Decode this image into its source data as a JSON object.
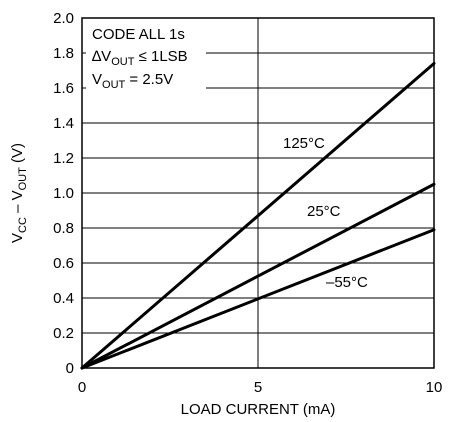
{
  "chart_data": {
    "type": "line",
    "title": "",
    "xlabel": "LOAD CURRENT (mA)",
    "ylabel": {
      "prefix": "V",
      "sub1": "CC",
      "mid": " – V",
      "sub2": "OUT",
      "suffix": " (V)"
    },
    "xlim": [
      0,
      10
    ],
    "ylim": [
      0,
      2.0
    ],
    "x_ticks": [
      "0",
      "5",
      "10"
    ],
    "y_ticks": [
      "0",
      "0.2",
      "0.4",
      "0.6",
      "0.8",
      "1.0",
      "1.2",
      "1.4",
      "1.6",
      "1.8",
      "2.0"
    ],
    "grid": true,
    "series": [
      {
        "name": "125°C",
        "x": [
          0,
          10
        ],
        "y": [
          0,
          1.74
        ]
      },
      {
        "name": "25°C",
        "x": [
          0,
          10
        ],
        "y": [
          0,
          1.05
        ]
      },
      {
        "name": "–55°C",
        "x": [
          0,
          10
        ],
        "y": [
          0,
          0.79
        ]
      }
    ],
    "conditions": {
      "line1": "CODE ALL 1s",
      "line2": {
        "prefix": "∆V",
        "sub": "OUT",
        "suffix": " ≤ 1LSB"
      },
      "line3": {
        "prefix": "V",
        "sub": "OUT",
        "suffix": " = 2.5V"
      }
    }
  }
}
